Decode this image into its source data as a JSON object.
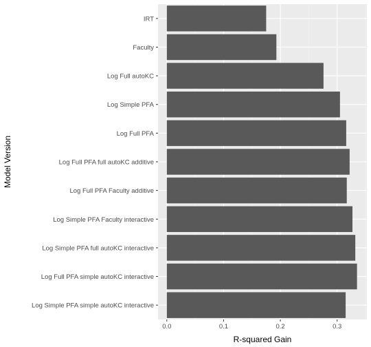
{
  "chart_data": {
    "type": "bar",
    "orientation": "horizontal",
    "xlabel": "R-squared Gain",
    "ylabel": "Model Version",
    "categories": [
      "IRT",
      "Faculty",
      "Log Full autoKC",
      "Log Simple PFA",
      "Log Full PFA",
      "Log Full PFA full autoKC additive",
      "Log Full PFA Faculty additive",
      "Log Simple PFA Faculty interactive",
      "Log Simple PFA full autoKC interactive",
      "Log Full PFA simple autoKC interactive",
      "Log Simple PFA simple autoKC interactive"
    ],
    "values": [
      0.175,
      0.193,
      0.276,
      0.305,
      0.316,
      0.322,
      0.317,
      0.327,
      0.332,
      0.335,
      0.315
    ],
    "xlim": [
      -0.0155,
      0.3524
    ],
    "xticks": [
      0.0,
      0.1,
      0.2,
      0.3
    ],
    "xtick_labels": [
      "0.0",
      "0.1",
      "0.2",
      "0.3"
    ],
    "grid": true,
    "legend": "none",
    "colors": {
      "panel": "#ebebeb",
      "grid_major": "#ffffff",
      "grid_minor": "#f5f5f5",
      "bar": "#595959",
      "tick": "#333333",
      "tick_label": "#4d4d4d"
    }
  }
}
